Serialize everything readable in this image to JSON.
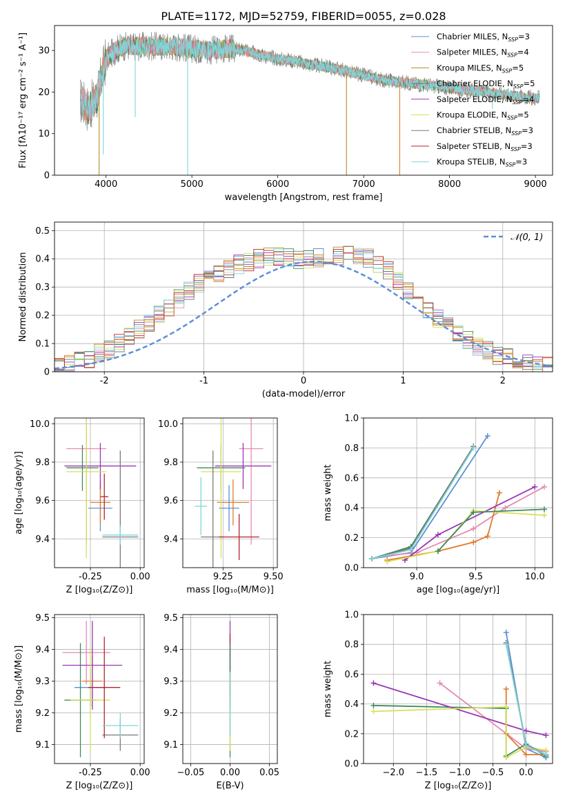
{
  "figure": {
    "title": "PLATE=1172, MJD=52759, FIBERID=0055, z=0.028",
    "colors": {
      "cm": "#5b8fd6",
      "sm": "#e589b6",
      "km": "#b38a2b",
      "ce": "#3f8a5e",
      "se": "#9a35b4",
      "ke": "#d6e05a",
      "cs": "#7a7a7a",
      "ss": "#b3232d",
      "ks": "#7fd6d6",
      "orange": "#e07a2b",
      "grid": "#b0b0b0"
    }
  },
  "chart_data": [
    {
      "id": "spectrum",
      "type": "line",
      "xlabel": "wavelength [Angstrom, rest frame]",
      "ylabel": "Flux [fλ10⁻¹⁷ erg cm⁻² s⁻¹ A⁻¹]",
      "xlim": [
        3400,
        9200
      ],
      "ylim": [
        0,
        36
      ],
      "xticks": [
        4000,
        5000,
        6000,
        7000,
        8000,
        9000
      ],
      "yticks": [
        0,
        10,
        20,
        30
      ],
      "grid": false,
      "legend_position": "top-right",
      "legend": [
        {
          "key": "cm",
          "label": "Chabrier MILES, N",
          "sub": "SSP",
          "suffix": "=3"
        },
        {
          "key": "sm",
          "label": "Salpeter MILES, N",
          "sub": "SSP",
          "suffix": "=4"
        },
        {
          "key": "km",
          "label": "Kroupa MILES, N",
          "sub": "SSP",
          "suffix": "=5"
        },
        {
          "key": "ce",
          "label": "Chabrier ELODIE, N",
          "sub": "SSP",
          "suffix": "=5"
        },
        {
          "key": "se",
          "label": "Salpeter ELODIE, N",
          "sub": "SSP",
          "suffix": "=4"
        },
        {
          "key": "ke",
          "label": "Kroupa ELODIE, N",
          "sub": "SSP",
          "suffix": "=5"
        },
        {
          "key": "cs",
          "label": "Chabrier STELIB, N",
          "sub": "SSP",
          "suffix": "=3"
        },
        {
          "key": "ss",
          "label": "Salpeter STELIB, N",
          "sub": "SSP",
          "suffix": "=3"
        },
        {
          "key": "ks",
          "label": "Kroupa STELIB, N",
          "sub": "SSP",
          "suffix": "=3"
        }
      ],
      "continuum": [
        [
          3700,
          18
        ],
        [
          3800,
          16
        ],
        [
          3900,
          19
        ],
        [
          3950,
          24
        ],
        [
          4000,
          28
        ],
        [
          4100,
          30
        ],
        [
          4200,
          31
        ],
        [
          4400,
          31
        ],
        [
          4600,
          31
        ],
        [
          4800,
          31
        ],
        [
          5000,
          30.5
        ],
        [
          5200,
          30
        ],
        [
          5400,
          30.5
        ],
        [
          5600,
          30
        ],
        [
          5800,
          29
        ],
        [
          6000,
          28
        ],
        [
          6200,
          27.5
        ],
        [
          6400,
          26.5
        ],
        [
          6600,
          26
        ],
        [
          6800,
          25
        ],
        [
          7000,
          24
        ],
        [
          7200,
          23
        ],
        [
          7400,
          22.5
        ],
        [
          7600,
          22
        ],
        [
          7800,
          21.5
        ],
        [
          8000,
          21
        ],
        [
          8200,
          20.5
        ],
        [
          8400,
          20
        ],
        [
          8600,
          19.5
        ],
        [
          8800,
          19
        ],
        [
          9000,
          18.5
        ],
        [
          9050,
          18.5
        ]
      ],
      "drops": [
        {
          "x": 3920,
          "y": 0,
          "key": "km"
        },
        {
          "x": 3968,
          "y": 5,
          "key": "ks"
        },
        {
          "x": 4340,
          "y": 14,
          "key": "ks"
        },
        {
          "x": 4950,
          "y": 0,
          "key": "ks"
        },
        {
          "x": 6800,
          "y": 0,
          "key": "km"
        },
        {
          "x": 7420,
          "y": 0,
          "key": "orange"
        },
        {
          "x": 8500,
          "y": 16,
          "key": "ks"
        }
      ]
    },
    {
      "id": "residuals",
      "type": "histogram",
      "xlabel": "(data-model)/error",
      "ylabel": "Normed distribution",
      "xlim": [
        -2.5,
        2.5
      ],
      "ylim": [
        0,
        0.53
      ],
      "xticks": [
        -2,
        -1,
        0,
        1,
        2
      ],
      "yticks": [
        0.0,
        0.1,
        0.2,
        0.3,
        0.4,
        0.5
      ],
      "grid": true,
      "legend_position": "top-right",
      "legend_label": "𝒩(0, 1)",
      "bin_start": -2.5,
      "bin_width": 0.1,
      "series_keys": [
        "cm",
        "sm",
        "km",
        "ce",
        "se",
        "ke",
        "cs",
        "ss",
        "ks",
        "orange"
      ],
      "amplitudes": [
        0.015,
        0.03,
        0.05,
        0.08,
        0.12,
        0.17,
        0.22,
        0.27,
        0.32,
        0.35,
        0.38,
        0.4,
        0.41,
        0.4,
        0.4,
        0.41,
        0.42,
        0.4,
        0.36,
        0.3,
        0.24,
        0.18,
        0.13,
        0.09,
        0.06,
        0.04,
        0.025,
        0.015
      ],
      "gaussian_center": 0.1,
      "gaussian_sigma": 0.98,
      "gaussian_peak": 0.39
    },
    {
      "id": "age-vs-Z",
      "type": "errorbar",
      "xlabel": "Z [log₁₀(Z/Z⊙)]",
      "ylabel": "age  [log₁₀(age/yr)]",
      "xlim": [
        -0.43,
        0.02
      ],
      "ylim": [
        9.25,
        10.03
      ],
      "xticks": [
        "-0.25",
        "0.00"
      ],
      "xtick_values": [
        -0.25,
        0.0
      ],
      "yticks": [
        "9.4",
        "9.6",
        "9.8",
        "10.0"
      ],
      "ytick_values": [
        9.4,
        9.6,
        9.8,
        10.0
      ],
      "grid": true,
      "points": [
        {
          "key": "cm",
          "x": -0.2,
          "xerr": 0.06,
          "y": 9.56,
          "yerr": 0.12
        },
        {
          "key": "sm",
          "x": -0.27,
          "xerr": 0.1,
          "y": 9.87,
          "yerr": 0.5
        },
        {
          "key": "orange",
          "x": -0.2,
          "xerr": 0.05,
          "y": 9.59,
          "yerr": 0.11
        },
        {
          "key": "ce",
          "x": -0.29,
          "xerr": 0.08,
          "y": 9.77,
          "yerr": 0.12
        },
        {
          "key": "se",
          "x": -0.2,
          "xerr": 0.18,
          "y": 9.78,
          "yerr": 0.12
        },
        {
          "key": "ke",
          "x": -0.27,
          "xerr": 0.1,
          "y": 9.75,
          "yerr": 0.45
        },
        {
          "key": "cs",
          "x": -0.1,
          "xerr": 0.09,
          "y": 9.41,
          "yerr": 0.45
        },
        {
          "key": "ss",
          "x": -0.18,
          "xerr": 0.02,
          "y": 9.62,
          "yerr": 0.12
        },
        {
          "key": "ks",
          "x": -0.1,
          "xerr": 0.09,
          "y": 9.42,
          "yerr": 0.05
        }
      ]
    },
    {
      "id": "age-vs-mass",
      "type": "errorbar",
      "xlabel": "mass [log₁₀(M/M⊙)]",
      "ylabel": "",
      "xlim": [
        9.05,
        9.52
      ],
      "ylim": [
        9.25,
        10.03
      ],
      "xticks": [
        "9.25",
        "9.50"
      ],
      "xtick_values": [
        9.25,
        9.5
      ],
      "yticks": [
        "9.4",
        "9.6",
        "9.8",
        "10.0"
      ],
      "ytick_values": [
        9.4,
        9.6,
        9.8,
        10.0
      ],
      "grid": true,
      "points": [
        {
          "key": "cm",
          "x": 9.28,
          "xerr": 0.05,
          "y": 9.56,
          "yerr": 0.12
        },
        {
          "key": "sm",
          "x": 9.39,
          "xerr": 0.06,
          "y": 9.87,
          "yerr": 0.5
        },
        {
          "key": "orange",
          "x": 9.3,
          "xerr": 0.08,
          "y": 9.59,
          "yerr": 0.12
        },
        {
          "key": "ce",
          "x": 9.24,
          "xerr": 0.12,
          "y": 9.77,
          "yerr": 0.12
        },
        {
          "key": "se",
          "x": 9.35,
          "xerr": 0.14,
          "y": 9.78,
          "yerr": 0.12
        },
        {
          "key": "ke",
          "x": 9.24,
          "xerr": 0.1,
          "y": 9.75,
          "yerr": 0.45
        },
        {
          "key": "cs",
          "x": 9.2,
          "xerr": 0.06,
          "y": 9.41,
          "yerr": 0.45
        },
        {
          "key": "ss",
          "x": 9.33,
          "xerr": 0.1,
          "y": 9.41,
          "yerr": 0.12
        },
        {
          "key": "ks",
          "x": 9.14,
          "xerr": 0.03,
          "y": 9.57,
          "yerr": 0.15
        }
      ]
    },
    {
      "id": "weight-vs-age",
      "type": "line",
      "xlabel": "age  [log₁₀(age/yr)]",
      "ylabel": "mass weight",
      "xlim": [
        8.55,
        10.15
      ],
      "ylim": [
        0,
        1.0
      ],
      "xticks": [
        "9.0",
        "9.5",
        "10.0"
      ],
      "xtick_values": [
        9.0,
        9.5,
        10.0
      ],
      "yticks": [
        "0.0",
        "0.2",
        "0.4",
        "0.6",
        "0.8",
        "1.0"
      ],
      "ytick_values": [
        0,
        0.2,
        0.4,
        0.6,
        0.8,
        1.0
      ],
      "grid": true,
      "series": [
        {
          "key": "cm",
          "points": [
            [
              8.62,
              0.06
            ],
            [
              8.95,
              0.1
            ],
            [
              9.6,
              0.88
            ]
          ]
        },
        {
          "key": "sm",
          "points": [
            [
              8.75,
              0.08
            ],
            [
              9.0,
              0.1
            ],
            [
              9.48,
              0.26
            ],
            [
              9.75,
              0.4
            ],
            [
              10.08,
              0.54
            ]
          ]
        },
        {
          "key": "orange",
          "points": [
            [
              8.75,
              0.05
            ],
            [
              9.18,
              0.11
            ],
            [
              9.48,
              0.17
            ],
            [
              9.6,
              0.21
            ],
            [
              9.7,
              0.5
            ]
          ]
        },
        {
          "key": "ce",
          "points": [
            [
              8.62,
              0.06
            ],
            [
              8.95,
              0.14
            ],
            [
              9.48,
              0.81
            ]
          ]
        },
        {
          "key": "se",
          "points": [
            [
              8.9,
              0.05
            ],
            [
              9.18,
              0.22
            ],
            [
              10.0,
              0.54
            ]
          ]
        },
        {
          "key": "ke",
          "points": [
            [
              8.75,
              0.04
            ],
            [
              9.18,
              0.11
            ],
            [
              9.48,
              0.38
            ],
            [
              10.08,
              0.35
            ]
          ]
        },
        {
          "key": "cs",
          "points": [
            [
              8.62,
              0.06
            ],
            [
              8.95,
              0.13
            ],
            [
              9.48,
              0.81
            ]
          ]
        },
        {
          "key": "ks",
          "points": [
            [
              8.62,
              0.06
            ],
            [
              8.95,
              0.12
            ],
            [
              9.48,
              0.8
            ]
          ]
        },
        {
          "key": "ce",
          "points": [
            [
              9.18,
              0.11
            ],
            [
              9.48,
              0.37
            ],
            [
              10.08,
              0.39
            ]
          ]
        }
      ]
    },
    {
      "id": "mass-vs-Z",
      "type": "errorbar",
      "xlabel": "Z [log₁₀(Z/Z⊙)]",
      "ylabel": "mass [log₁₀(M/M⊙)]",
      "xlim": [
        -0.43,
        0.02
      ],
      "ylim": [
        9.04,
        9.51
      ],
      "xticks": [
        "-0.25",
        "0.00"
      ],
      "xtick_values": [
        -0.25,
        0.0
      ],
      "yticks": [
        "9.1",
        "9.2",
        "9.3",
        "9.4",
        "9.5"
      ],
      "ytick_values": [
        9.1,
        9.2,
        9.3,
        9.4,
        9.5
      ],
      "grid": true,
      "points": [
        {
          "key": "cm",
          "x": -0.25,
          "xerr": 0.08,
          "y": 9.28,
          "yerr": 0.06
        },
        {
          "key": "sm",
          "x": -0.27,
          "xerr": 0.12,
          "y": 9.39,
          "yerr": 0.1
        },
        {
          "key": "orange",
          "x": -0.24,
          "xerr": 0.05,
          "y": 9.3,
          "yerr": 0.08
        },
        {
          "key": "ce",
          "x": -0.3,
          "xerr": 0.08,
          "y": 9.24,
          "yerr": 0.18
        },
        {
          "key": "se",
          "x": -0.24,
          "xerr": 0.15,
          "y": 9.35,
          "yerr": 0.14
        },
        {
          "key": "ke",
          "x": -0.25,
          "xerr": 0.1,
          "y": 9.24,
          "yerr": 0.16
        },
        {
          "key": "cs",
          "x": -0.1,
          "xerr": 0.09,
          "y": 9.13,
          "yerr": 0.05
        },
        {
          "key": "ss",
          "x": -0.18,
          "xerr": 0.08,
          "y": 9.28,
          "yerr": 0.16
        },
        {
          "key": "ks",
          "x": -0.1,
          "xerr": 0.09,
          "y": 9.16,
          "yerr": 0.04
        }
      ]
    },
    {
      "id": "mass-vs-ebv",
      "type": "errorbar",
      "xlabel": "E(B-V)",
      "ylabel": "",
      "xlim": [
        -0.06,
        0.06
      ],
      "ylim": [
        9.04,
        9.51
      ],
      "xticks": [
        "−0.05",
        "0.00",
        "0.05"
      ],
      "xtick_values": [
        -0.05,
        0.0,
        0.05
      ],
      "yticks": [
        "9.1",
        "9.2",
        "9.3",
        "9.4",
        "9.5"
      ],
      "ytick_values": [
        9.1,
        9.2,
        9.3,
        9.4,
        9.5
      ],
      "grid": true,
      "points": [
        {
          "key": "se",
          "x": 0.0,
          "xerr": 0.0,
          "y": 9.35,
          "yerr": 0.14
        },
        {
          "key": "ss",
          "x": 0.0,
          "xerr": 0.0,
          "y": 9.35,
          "yerr": 0.1
        },
        {
          "key": "ce",
          "x": 0.0,
          "xerr": 0.0,
          "y": 9.24,
          "yerr": 0.18
        },
        {
          "key": "ke",
          "x": 0.0,
          "xerr": 0.0,
          "y": 9.2,
          "yerr": 0.12
        },
        {
          "key": "ks",
          "x": 0.0,
          "xerr": 0.0,
          "y": 9.23,
          "yerr": 0.1
        }
      ]
    },
    {
      "id": "weight-vs-Z",
      "type": "line",
      "xlabel": "Z [log₁₀(Z/Z⊙)]",
      "ylabel": "mass weight",
      "xlim": [
        -2.45,
        0.4
      ],
      "ylim": [
        0,
        1.0
      ],
      "xticks": [
        "−2.0",
        "−1.5",
        "−1.0",
        "−0.5",
        "0.0"
      ],
      "xtick_values": [
        -2.0,
        -1.5,
        -1.0,
        -0.5,
        0.0
      ],
      "yticks": [
        "0.0",
        "0.2",
        "0.4",
        "0.6",
        "0.8",
        "1.0"
      ],
      "ytick_values": [
        0,
        0.2,
        0.4,
        0.6,
        0.8,
        1.0
      ],
      "grid": true,
      "series": [
        {
          "key": "cm",
          "points": [
            [
              -0.3,
              0.88
            ],
            [
              0.0,
              0.1
            ],
            [
              0.3,
              0.04
            ]
          ]
        },
        {
          "key": "sm",
          "points": [
            [
              -1.3,
              0.54
            ],
            [
              0.0,
              0.1
            ],
            [
              0.3,
              0.08
            ]
          ]
        },
        {
          "key": "orange",
          "points": [
            [
              -0.3,
              0.5
            ],
            [
              -0.3,
              0.2
            ],
            [
              0.0,
              0.06
            ],
            [
              0.3,
              0.06
            ]
          ]
        },
        {
          "key": "ce",
          "points": [
            [
              -2.3,
              0.39
            ],
            [
              -0.3,
              0.37
            ],
            [
              -0.3,
              0.05
            ],
            [
              0.0,
              0.13
            ],
            [
              0.3,
              0.05
            ]
          ]
        },
        {
          "key": "se",
          "points": [
            [
              -2.3,
              0.54
            ],
            [
              0.0,
              0.22
            ],
            [
              0.3,
              0.19
            ]
          ]
        },
        {
          "key": "ke",
          "points": [
            [
              -2.3,
              0.35
            ],
            [
              -0.3,
              0.38
            ],
            [
              -0.3,
              0.04
            ],
            [
              0.0,
              0.11
            ],
            [
              0.3,
              0.09
            ]
          ]
        },
        {
          "key": "cs",
          "points": [
            [
              -0.3,
              0.81
            ],
            [
              0.0,
              0.13
            ],
            [
              0.3,
              0.06
            ]
          ]
        },
        {
          "key": "ks",
          "points": [
            [
              -0.3,
              0.8
            ],
            [
              0.0,
              0.12
            ],
            [
              0.3,
              0.06
            ]
          ]
        }
      ]
    }
  ]
}
